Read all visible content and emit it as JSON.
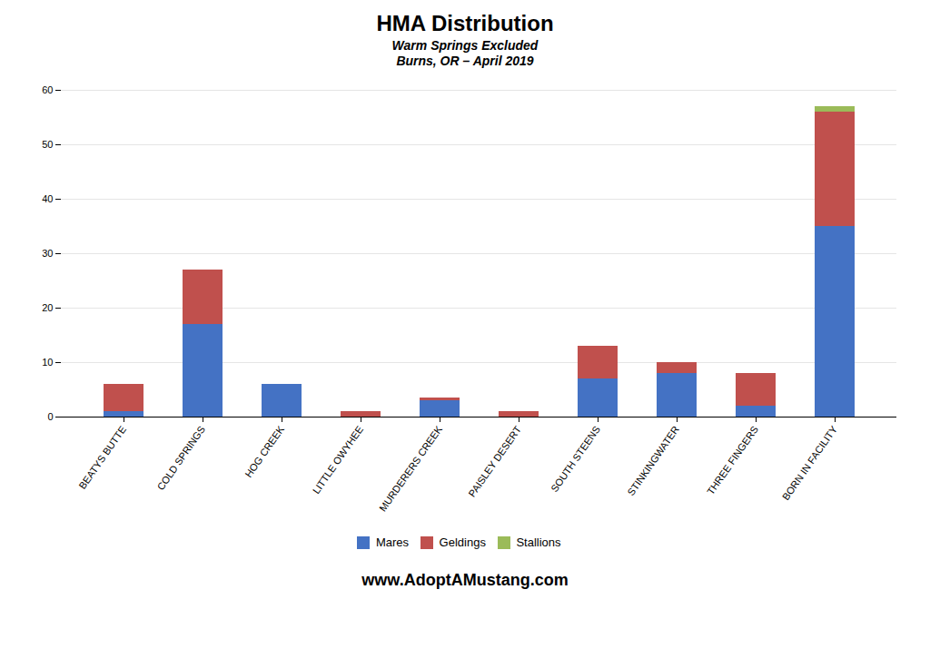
{
  "chart_data": {
    "type": "bar",
    "stacked": true,
    "title": "HMA Distribution",
    "subtitle": [
      "Warm Springs Excluded",
      "Burns, OR – April 2019"
    ],
    "annotations": [
      "www.AdoptAMustang.com"
    ],
    "categories": [
      "BEATYS BUTTE",
      "COLD SPRINGS",
      "HOG CREEK",
      "LITTLE OWYHEE",
      "MURDERERS CREEK",
      "PAISLEY DESERT",
      "SOUTH STEENS",
      "STINKINGWATER",
      "THREE FINGERS",
      "BORN IN FACILITY"
    ],
    "series": [
      {
        "name": "Mares",
        "color": "#4472C4",
        "values": [
          1,
          17,
          6,
          0,
          3,
          0,
          7,
          8,
          2,
          35
        ]
      },
      {
        "name": "Geldings",
        "color": "#C0504D",
        "values": [
          5,
          10,
          0,
          1,
          0.5,
          1,
          6,
          2,
          6,
          21
        ]
      },
      {
        "name": "Stallions",
        "color": "#9BBB59",
        "values": [
          0,
          0,
          0,
          0,
          0,
          0,
          0,
          0,
          0,
          1
        ]
      }
    ],
    "ylim": [
      0,
      60
    ],
    "yticks": [
      0,
      10,
      20,
      30,
      40,
      50,
      60
    ],
    "grid": true,
    "legend": "bottom"
  }
}
